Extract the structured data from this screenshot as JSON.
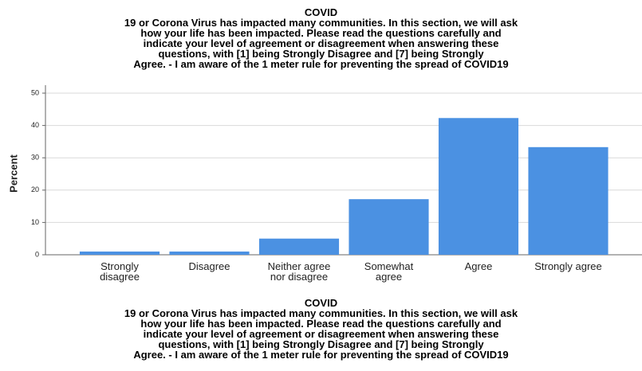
{
  "chart_data": {
    "type": "bar",
    "title": "COVID\n19 or Corona Virus has impacted many communities. In this section, we will ask\nhow your life has been impacted. Please read the questions carefully and\nindicate your level of agreement or disagreement when answering these\nquestions, with [1] being Strongly Disagree and [7] being Strongly\nAgree. - I am aware of the 1 meter rule for preventing the spread of COVID19",
    "x_label": "COVID\n19 or Corona Virus has impacted many communities. In this section, we will ask\nhow your life has been impacted. Please read the questions carefully and\nindicate your level of agreement or disagreement when answering these\nquestions, with [1] being Strongly Disagree and [7] being Strongly\nAgree. - I am aware of the 1 meter rule for preventing the spread of COVID19",
    "y_label": "Percent",
    "categories": [
      "Strongly\ndisagree",
      "Disagree",
      "Neither agree\nnor disagree",
      "Somewhat\nagree",
      "Agree",
      "Strongly agree"
    ],
    "values": [
      1.0,
      1.0,
      5.0,
      17.2,
      42.3,
      33.3
    ],
    "color": "#4b91e2",
    "ylim": [
      0,
      50
    ],
    "yticks": [
      0,
      10,
      20,
      30,
      40,
      50
    ],
    "grid": true
  }
}
